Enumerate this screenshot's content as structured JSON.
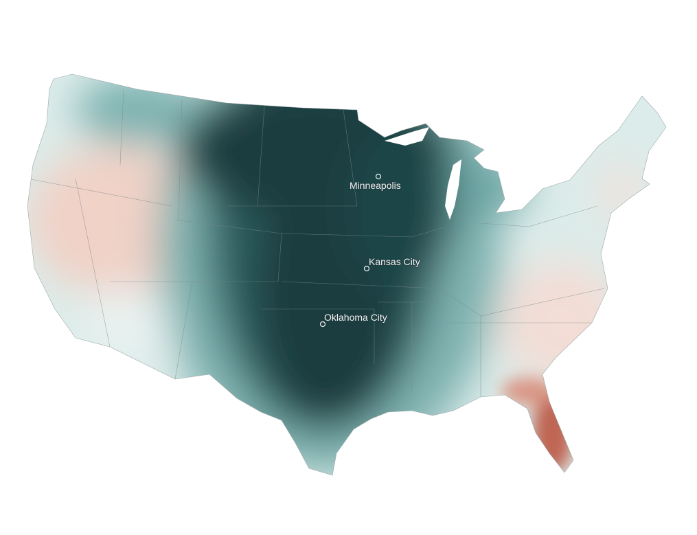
{
  "cities": [
    {
      "label": "Minneapolis"
    },
    {
      "label": "Kansas City"
    },
    {
      "label": "Oklahoma City"
    }
  ]
}
